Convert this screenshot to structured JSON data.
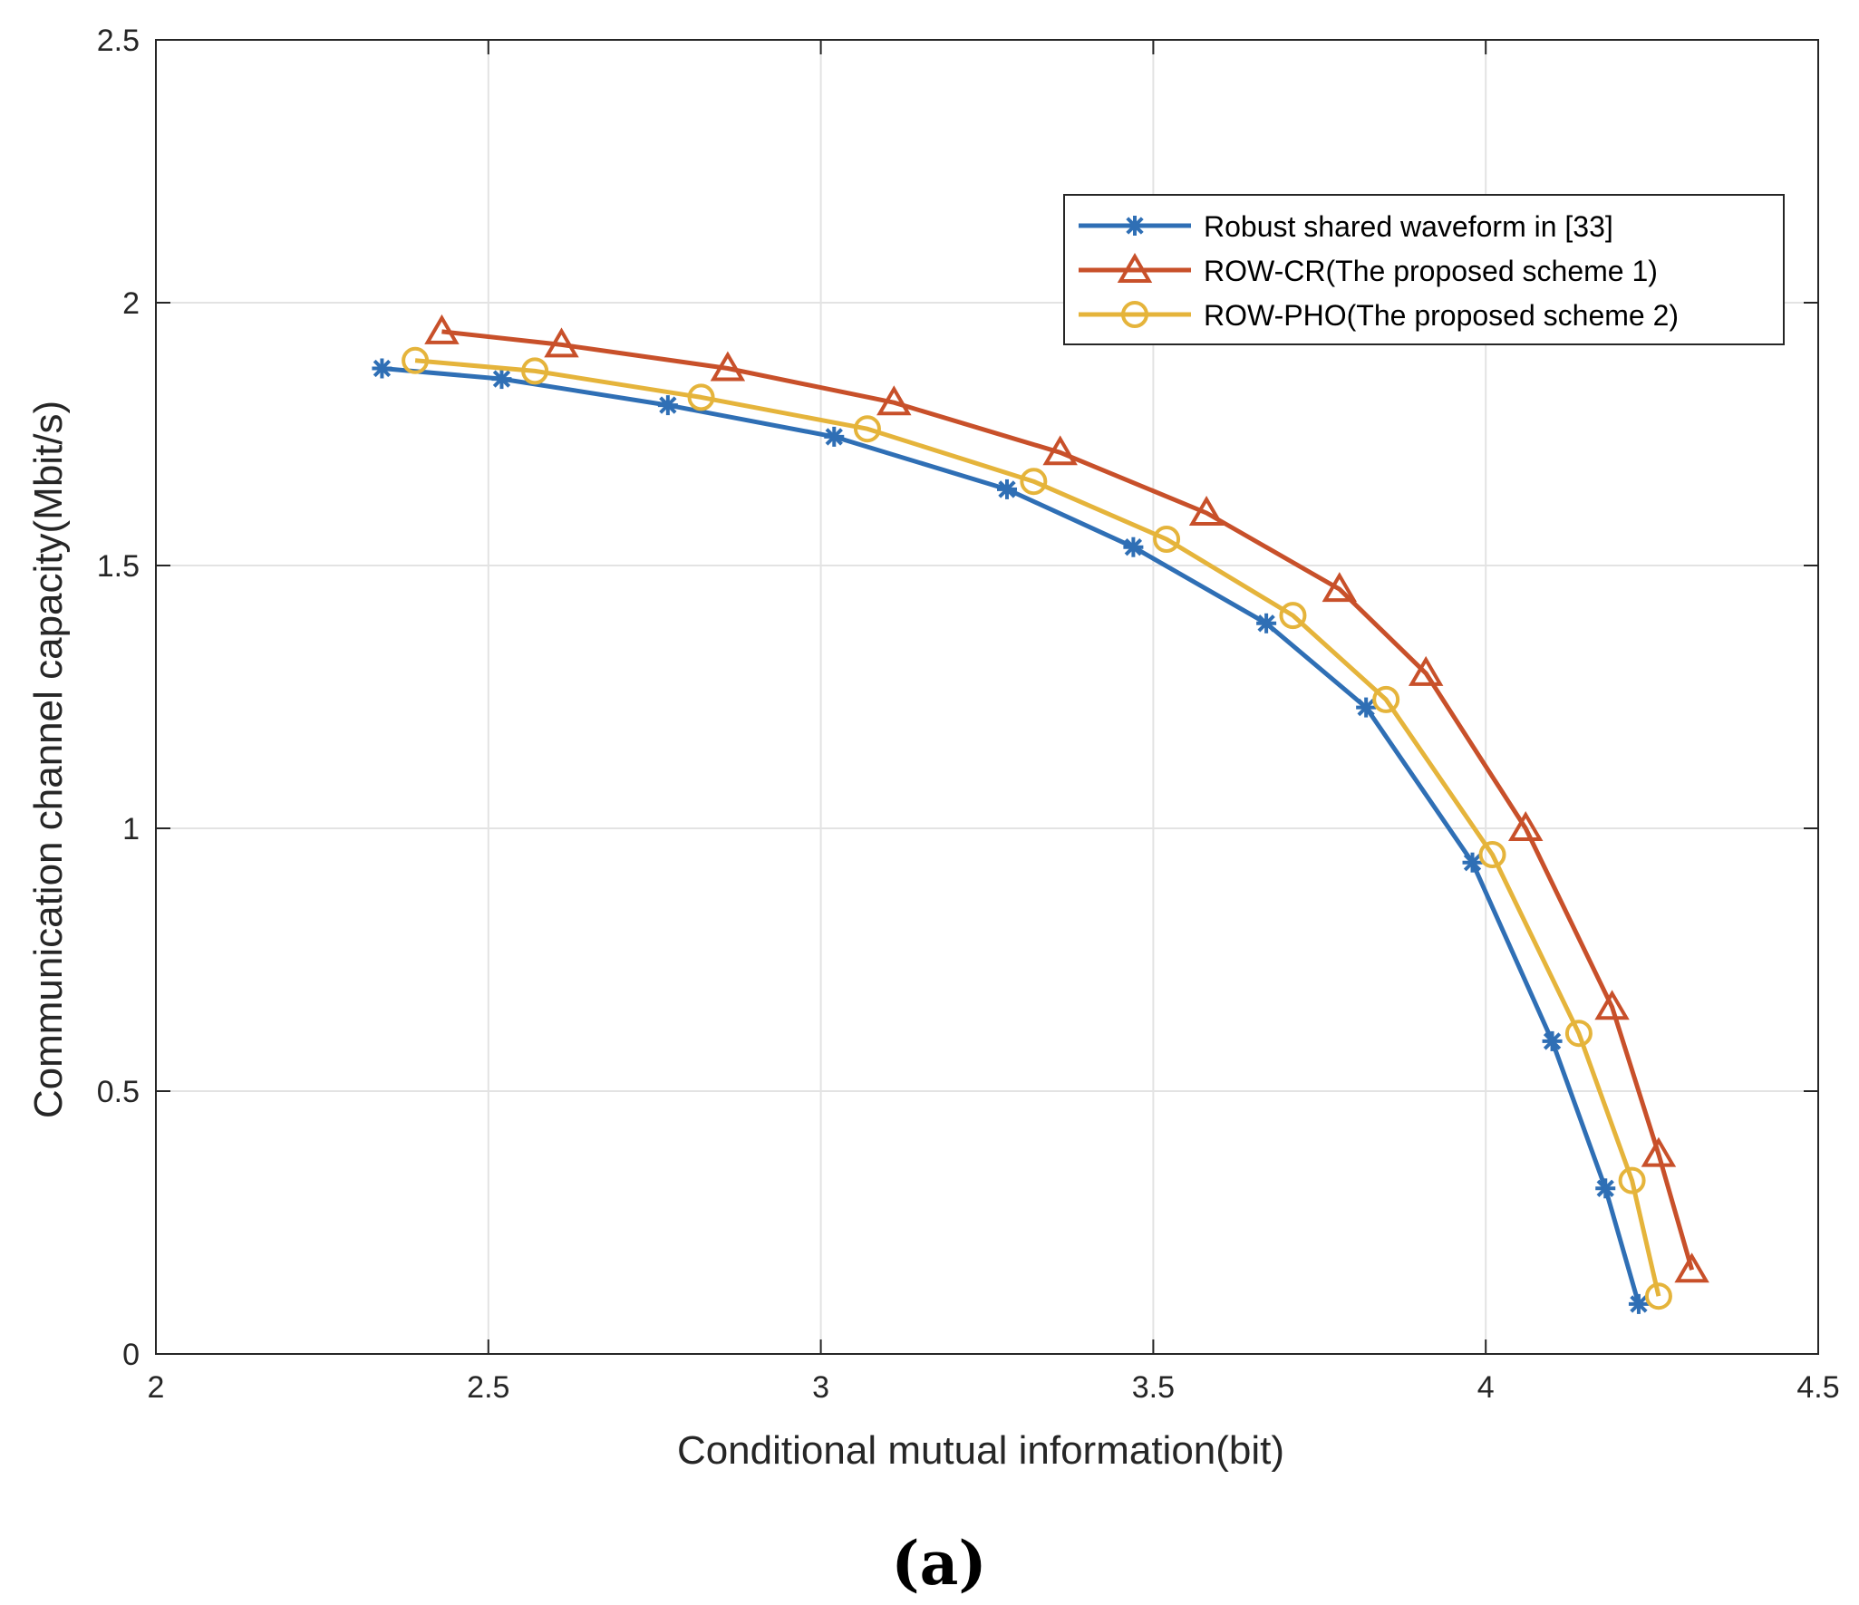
{
  "chart_data": {
    "type": "line",
    "title": "",
    "xlabel": "Conditional mutual information(bit)",
    "ylabel": "Communication channel capacity(Mbit/s)",
    "xlim": [
      2,
      4.5
    ],
    "ylim": [
      0,
      2.5
    ],
    "xticks": [
      2,
      2.5,
      3,
      3.5,
      4,
      4.5
    ],
    "xtick_labels": [
      "2",
      "2.5",
      "3",
      "3.5",
      "4",
      "4.5"
    ],
    "yticks": [
      0,
      0.5,
      1,
      1.5,
      2,
      2.5
    ],
    "ytick_labels": [
      "0",
      "0.5",
      "1",
      "1.5",
      "2",
      "2.5"
    ],
    "grid": true,
    "legend_position": "top-right",
    "caption": "(a)",
    "series": [
      {
        "name": "Robust shared waveform in [33]",
        "color": "#2f6fb5",
        "marker": "asterisk",
        "x": [
          2.34,
          2.52,
          2.77,
          3.02,
          3.28,
          3.47,
          3.67,
          3.82,
          3.98,
          4.1,
          4.18,
          4.23
        ],
        "y": [
          1.875,
          1.855,
          1.805,
          1.745,
          1.645,
          1.535,
          1.39,
          1.23,
          0.935,
          0.595,
          0.315,
          0.095
        ]
      },
      {
        "name": "ROW-CR(The proposed scheme 1)",
        "color": "#c8502a",
        "marker": "triangle",
        "x": [
          2.43,
          2.61,
          2.86,
          3.11,
          3.36,
          3.58,
          3.78,
          3.91,
          4.06,
          4.19,
          4.26,
          4.31
        ],
        "y": [
          1.945,
          1.92,
          1.875,
          1.81,
          1.715,
          1.6,
          1.455,
          1.295,
          1.0,
          0.66,
          0.38,
          0.16
        ]
      },
      {
        "name": "ROW-PHO(The proposed scheme 2)",
        "color": "#e5b43b",
        "marker": "circle",
        "x": [
          2.39,
          2.57,
          2.82,
          3.07,
          3.32,
          3.52,
          3.71,
          3.85,
          4.01,
          4.14,
          4.22,
          4.26
        ],
        "y": [
          1.89,
          1.87,
          1.82,
          1.76,
          1.66,
          1.55,
          1.405,
          1.245,
          0.95,
          0.61,
          0.33,
          0.11
        ]
      }
    ]
  }
}
